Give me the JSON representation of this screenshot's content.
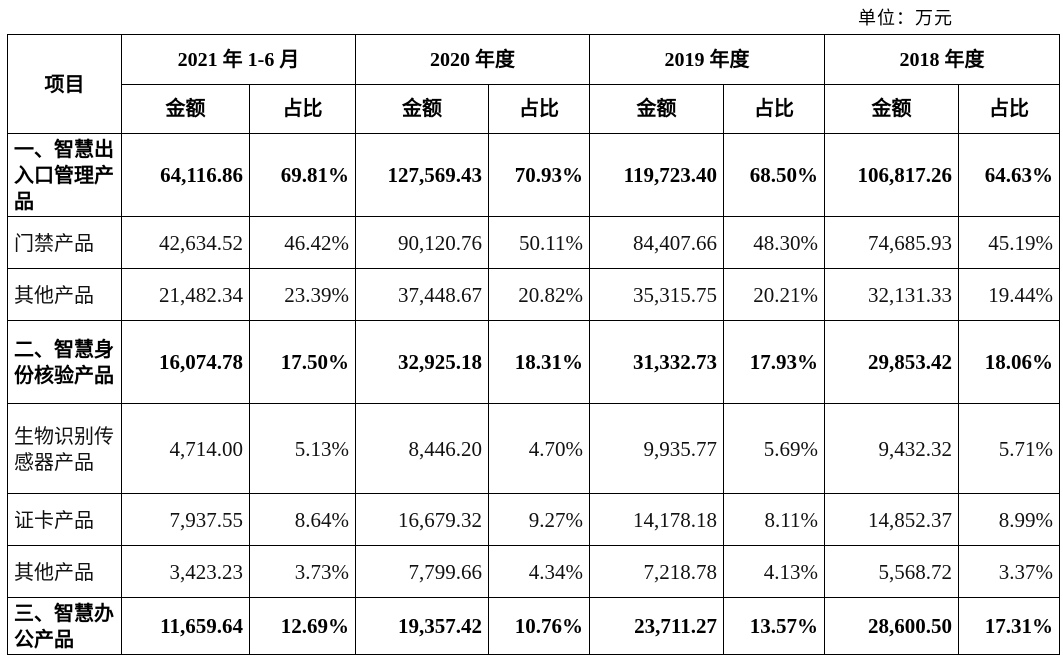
{
  "unit_label": "单位：万元",
  "table": {
    "corner_label": "项目",
    "periods": [
      "2021 年 1-6 月",
      "2020 年度",
      "2019 年度",
      "2018 年度"
    ],
    "sub_headers": {
      "amount": "金额",
      "ratio": "占比"
    },
    "rows": [
      {
        "name": "一、智慧出入口管理产品",
        "bold": true,
        "cells": [
          "64,116.86",
          "69.81%",
          "127,569.43",
          "70.93%",
          "119,723.40",
          "68.50%",
          "106,817.26",
          "64.63%"
        ]
      },
      {
        "name": "门禁产品",
        "bold": false,
        "cells": [
          "42,634.52",
          "46.42%",
          "90,120.76",
          "50.11%",
          "84,407.66",
          "48.30%",
          "74,685.93",
          "45.19%"
        ]
      },
      {
        "name": "其他产品",
        "bold": false,
        "cells": [
          "21,482.34",
          "23.39%",
          "37,448.67",
          "20.82%",
          "35,315.75",
          "20.21%",
          "32,131.33",
          "19.44%"
        ]
      },
      {
        "name": "二、智慧身份核验产品",
        "bold": true,
        "cells": [
          "16,074.78",
          "17.50%",
          "32,925.18",
          "18.31%",
          "31,332.73",
          "17.93%",
          "29,853.42",
          "18.06%"
        ]
      },
      {
        "name": "生物识别传感器产品",
        "bold": false,
        "cells": [
          "4,714.00",
          "5.13%",
          "8,446.20",
          "4.70%",
          "9,935.77",
          "5.69%",
          "9,432.32",
          "5.71%"
        ]
      },
      {
        "name": "证卡产品",
        "bold": false,
        "cells": [
          "7,937.55",
          "8.64%",
          "16,679.32",
          "9.27%",
          "14,178.18",
          "8.11%",
          "14,852.37",
          "8.99%"
        ]
      },
      {
        "name": "其他产品",
        "bold": false,
        "cells": [
          "3,423.23",
          "3.73%",
          "7,799.66",
          "4.34%",
          "7,218.78",
          "4.13%",
          "5,568.72",
          "3.37%"
        ]
      },
      {
        "name": "三、智慧办公产品",
        "bold": true,
        "cells": [
          "11,659.64",
          "12.69%",
          "19,357.42",
          "10.76%",
          "23,711.27",
          "13.57%",
          "28,600.50",
          "17.31%"
        ]
      }
    ]
  }
}
